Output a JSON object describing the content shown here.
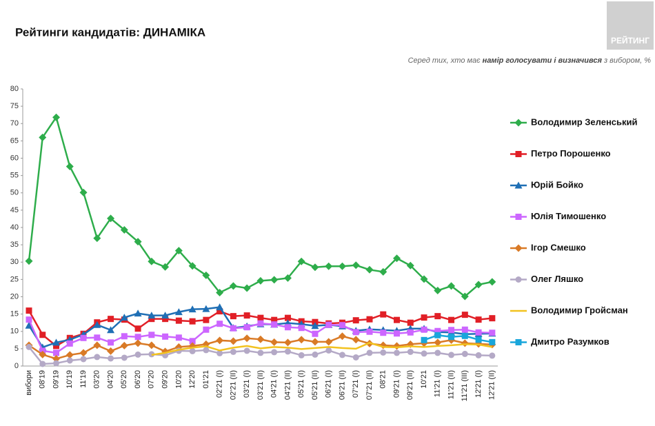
{
  "logo": "РЕЙТИНГ",
  "chart_data": {
    "type": "line",
    "title": "Рейтинги кандидатів: ДИНАМІКА",
    "subtitle": [
      "Серед тих, хто має ",
      "намір голосувати і визначився",
      " з вибором, %"
    ],
    "categories": [
      "вибори",
      "08'19",
      "09'19",
      "10'19",
      "11'19",
      "03'20",
      "04'20",
      "05'20",
      "06'20",
      "07'20",
      "09'20",
      "10'20",
      "12'20",
      "01'21",
      "02'21 (I)",
      "02'21 (II)",
      "03'21 (I)",
      "03'21 (II)",
      "04'21 (I)",
      "04'21 (II)",
      "05'21 (I)",
      "05'21 (II)",
      "06'21 (I)",
      "06'21 (II)",
      "07'21 (I)",
      "07'21 (II)",
      "08'21",
      "09'21 (I)",
      "09'21 (II)",
      "10'21",
      "11'21 (I)",
      "11'21 (II)",
      "11'21 (III)",
      "12'21 (I)",
      "12'21 (II)"
    ],
    "ylim": [
      0,
      80
    ],
    "yticks": [
      0,
      5,
      10,
      15,
      20,
      25,
      30,
      35,
      40,
      45,
      50,
      55,
      60,
      65,
      70,
      75,
      80
    ],
    "grid": false,
    "legend": "right",
    "series": [
      {
        "name": "Володимир Зеленський",
        "color": "#2ead4b",
        "marker": "diamond",
        "values": [
          30.3,
          66,
          71.8,
          57.6,
          50.1,
          36.9,
          42.6,
          39.3,
          35.9,
          30.2,
          28.6,
          33.3,
          28.9,
          26.2,
          21.2,
          23.1,
          22.5,
          24.6,
          24.9,
          25.4,
          30.2,
          28.5,
          28.8,
          28.8,
          29.1,
          27.8,
          27.2,
          31.1,
          29,
          25.1,
          21.8,
          23.1,
          20.1,
          23.5,
          24.3
        ]
      },
      {
        "name": "Петро Порошенко",
        "color": "#e11f26",
        "marker": "square",
        "values": [
          16,
          9,
          5.8,
          8.1,
          9.3,
          12.6,
          13.6,
          13.4,
          10.8,
          13.6,
          13.6,
          13.1,
          12.9,
          13.3,
          15.8,
          14.4,
          14.6,
          13.9,
          13.3,
          13.9,
          12.9,
          12.7,
          12.3,
          12.5,
          13.2,
          13.5,
          14.9,
          13.3,
          12.5,
          14,
          14.4,
          13.3,
          14.8,
          13.4,
          13.8
        ]
      },
      {
        "name": "Юрій Бойко",
        "color": "#1f6fb5",
        "marker": "triangle",
        "values": [
          11.7,
          5.4,
          6.8,
          7.6,
          9.1,
          11.9,
          10.4,
          14,
          15.2,
          14.6,
          14.6,
          15.6,
          16.4,
          16.5,
          17,
          11,
          11.5,
          12.1,
          12,
          12.4,
          12.1,
          11.6,
          11.9,
          11.5,
          10.2,
          10.6,
          10.4,
          10.2,
          10.8,
          10.8,
          9.8,
          9.7,
          9.2,
          9.3,
          9.4
        ]
      },
      {
        "name": "Юлія Тимошенко",
        "color": "#cc66ff",
        "marker": "square",
        "values": [
          13.4,
          4.4,
          3.8,
          6.5,
          8.1,
          8.2,
          6.8,
          8.6,
          8.4,
          9,
          8.5,
          8.2,
          7.2,
          10.5,
          12.2,
          10.9,
          11.2,
          12.3,
          12,
          11.2,
          11,
          9.3,
          11.9,
          11.8,
          9.8,
          9.9,
          9.6,
          9.4,
          9.7,
          10.5,
          10.1,
          10.4,
          10.5,
          9.7,
          9.6
        ]
      },
      {
        "name": "Ігор Смешко",
        "color": "#d97a26",
        "marker": "diamond",
        "values": [
          6,
          3.3,
          2.1,
          3.2,
          3.8,
          6,
          4.3,
          5.9,
          6.6,
          6,
          4.2,
          5.5,
          5.8,
          6.3,
          7.4,
          7.2,
          8,
          7.7,
          6.9,
          6.8,
          7.6,
          7,
          7,
          8.6,
          7.6,
          6.5,
          6,
          5.8,
          6.3,
          6.6,
          6.8,
          7.5,
          6.6,
          6.4,
          6.2
        ]
      },
      {
        "name": "Олег Ляшко",
        "color": "#b4a9c6",
        "marker": "circle",
        "values": [
          5.5,
          0.6,
          0.8,
          1.6,
          2,
          2.6,
          2.2,
          2.4,
          3.3,
          3.4,
          3.1,
          4.4,
          4.3,
          4.6,
          3.7,
          4.1,
          4.4,
          3.8,
          4,
          4.2,
          3.1,
          3.3,
          4.5,
          3.2,
          2.5,
          3.8,
          3.9,
          3.8,
          4.1,
          3.6,
          3.8,
          3.2,
          3.5,
          3.1,
          3
        ]
      },
      {
        "name": "Володимир Гройсман",
        "color": "#f2c21f",
        "marker": "none",
        "values": [
          null,
          null,
          null,
          null,
          null,
          null,
          null,
          null,
          null,
          3.2,
          3.8,
          4.7,
          5.3,
          5.7,
          4.5,
          5.3,
          5.8,
          5.1,
          5.5,
          5.3,
          4.9,
          5.2,
          5.5,
          5.2,
          5,
          6.7,
          5.5,
          5.4,
          5.7,
          5.5,
          5.8,
          6,
          6.3,
          6.2,
          5.5
        ]
      },
      {
        "name": "Дмитро Разумков",
        "color": "#19a6db",
        "marker": "square",
        "values": [
          null,
          null,
          null,
          null,
          null,
          null,
          null,
          null,
          null,
          null,
          null,
          null,
          null,
          null,
          null,
          null,
          null,
          null,
          null,
          null,
          null,
          null,
          null,
          null,
          null,
          null,
          null,
          null,
          null,
          7.5,
          8.9,
          8.4,
          8.7,
          7.6,
          6.9
        ]
      }
    ]
  }
}
